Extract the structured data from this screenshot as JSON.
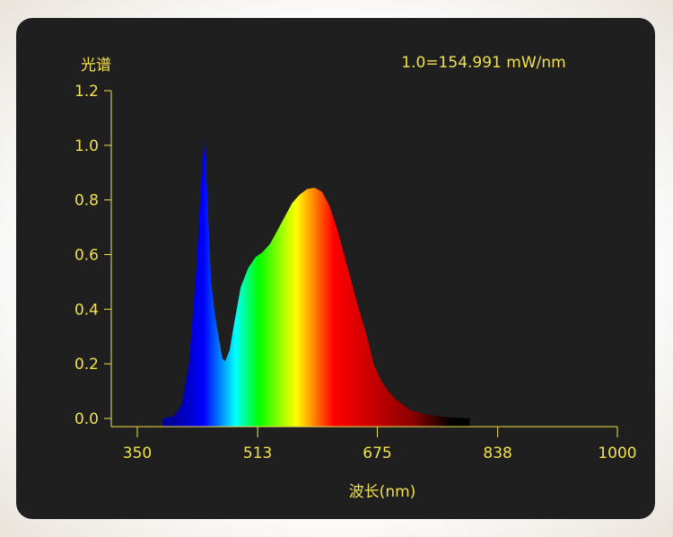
{
  "chart_data": {
    "type": "area",
    "ylabel": "光谱",
    "xlabel": "波长(nm)",
    "annotation": "1.0=154.991 mW/nm",
    "xlim": [
      315,
      1000
    ],
    "ylim": [
      -0.03,
      1.2
    ],
    "x_ticks": [
      350,
      513,
      675,
      838,
      1000
    ],
    "x_tick_labels": [
      "350",
      "513",
      "675",
      "838",
      "1000"
    ],
    "y_ticks": [
      0.0,
      0.2,
      0.4,
      0.6,
      0.8,
      1.0,
      1.2
    ],
    "y_tick_labels": [
      "0.0",
      "0.2",
      "0.4",
      "0.6",
      "0.8",
      "1.0",
      "1.2"
    ],
    "grid": false,
    "x": [
      385,
      400,
      410,
      420,
      430,
      436,
      441,
      445,
      450,
      455,
      460,
      465,
      469,
      475,
      480,
      490,
      500,
      510,
      520,
      530,
      540,
      550,
      560,
      570,
      580,
      590,
      600,
      610,
      620,
      630,
      640,
      650,
      660,
      670,
      680,
      690,
      700,
      710,
      720,
      740,
      760,
      800
    ],
    "values": [
      0,
      0.01,
      0.05,
      0.2,
      0.55,
      0.85,
      1.03,
      0.8,
      0.5,
      0.38,
      0.3,
      0.22,
      0.21,
      0.25,
      0.33,
      0.48,
      0.55,
      0.59,
      0.61,
      0.64,
      0.69,
      0.74,
      0.79,
      0.82,
      0.84,
      0.845,
      0.83,
      0.78,
      0.7,
      0.6,
      0.5,
      0.4,
      0.31,
      0.2,
      0.14,
      0.1,
      0.07,
      0.05,
      0.03,
      0.015,
      0.007,
      0
    ],
    "fill_gradient": [
      {
        "nm": 400,
        "color": "#0000a0"
      },
      {
        "nm": 440,
        "color": "#0000ff"
      },
      {
        "nm": 483,
        "color": "#00ffff"
      },
      {
        "nm": 514,
        "color": "#00ff00"
      },
      {
        "nm": 565,
        "color": "#ffff00"
      },
      {
        "nm": 590,
        "color": "#ff8000"
      },
      {
        "nm": 616,
        "color": "#ff0000"
      },
      {
        "nm": 723,
        "color": "#8b0000"
      },
      {
        "nm": 775,
        "color": "#000000"
      }
    ]
  },
  "colors": {
    "text": "#f2e14c",
    "axis": "#f2e14c",
    "background": "#1f1f1f"
  }
}
